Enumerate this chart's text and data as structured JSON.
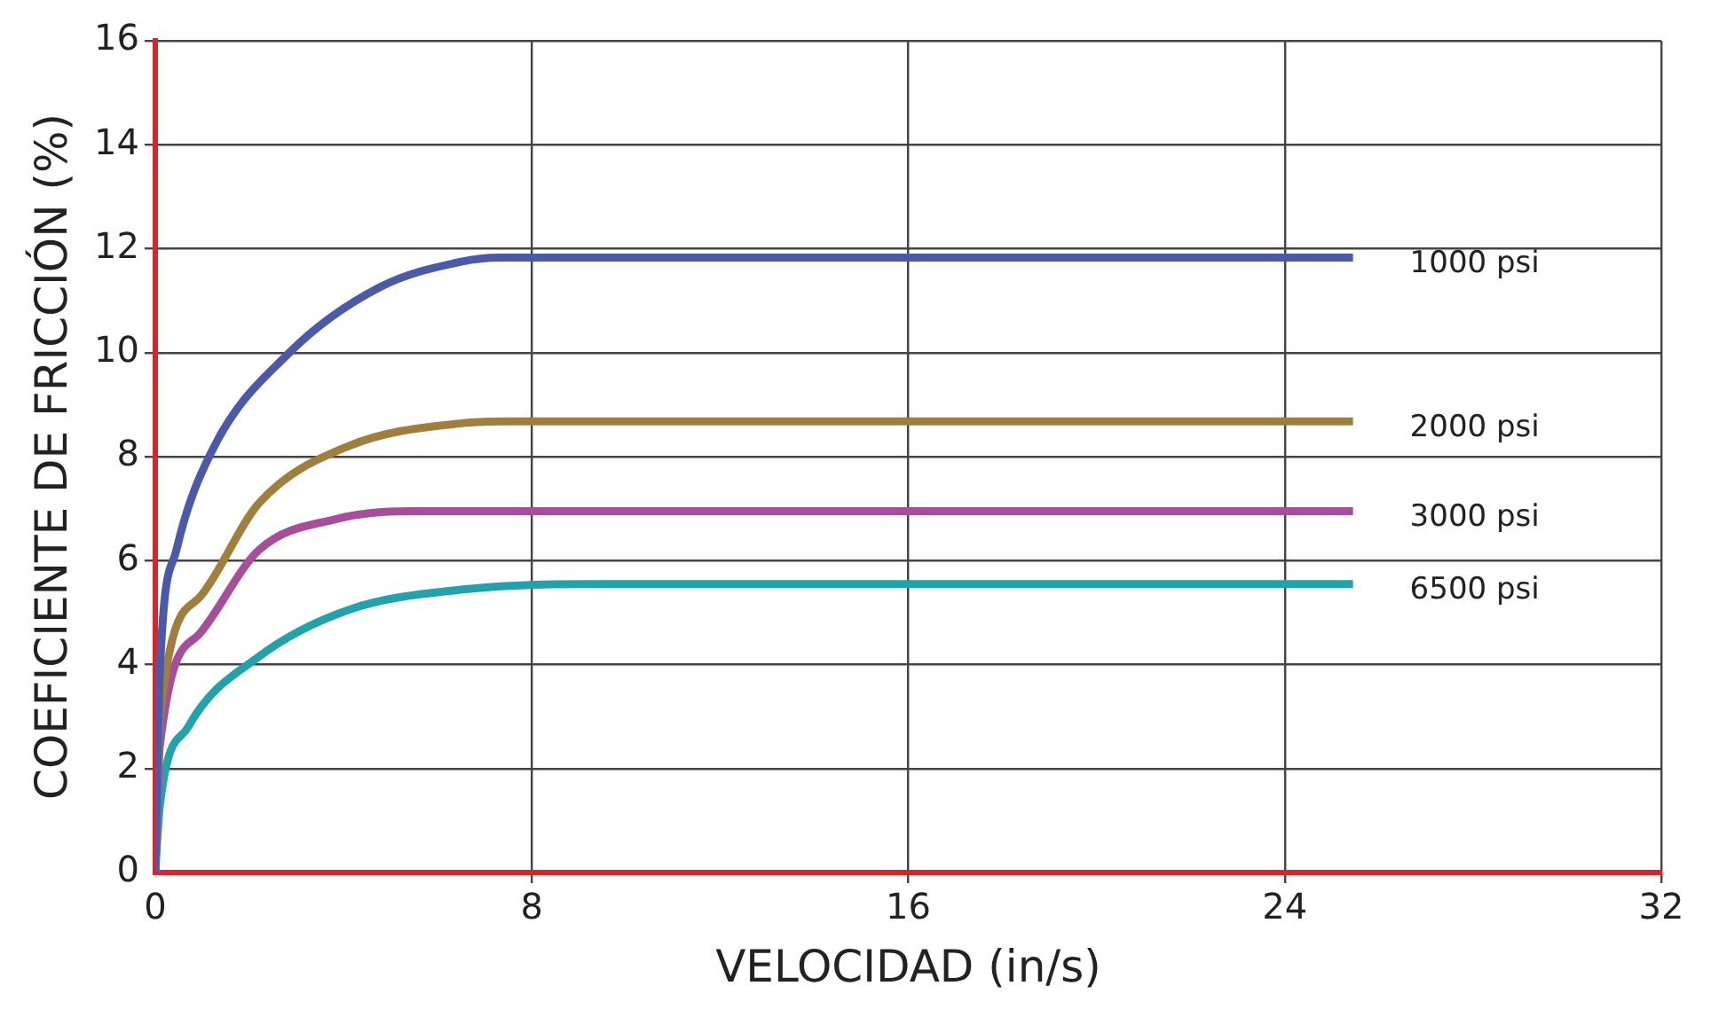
{
  "chart_data": {
    "type": "line",
    "xlabel": "VELOCIDAD (in/s)",
    "ylabel": "COEFICIENTE DE FRICCIÓN (%)",
    "xlim": [
      0,
      32
    ],
    "xticks": [
      0,
      8,
      16,
      24,
      32
    ],
    "ylim": [
      0,
      16
    ],
    "yticks": [
      0,
      2,
      4,
      6,
      8,
      10,
      12,
      14,
      16
    ],
    "grid": true,
    "marker": "none",
    "series": [
      {
        "name": "1000 psi",
        "color": "#4b5aa8",
        "x": [
          0,
          0.1,
          0.45,
          1.2,
          2.85,
          4.75,
          6.5,
          7.3,
          25.45
        ],
        "values": [
          0,
          3.9,
          6.2,
          8.1,
          10.0,
          11.25,
          11.75,
          11.83,
          11.83
        ]
      },
      {
        "name": "2000 psi",
        "color": "#a07f3c",
        "x": [
          0,
          0.1,
          0.95,
          2.2,
          4.1,
          6.6,
          7.5,
          25.45
        ],
        "values": [
          0,
          3.0,
          5.3,
          7.1,
          8.2,
          8.65,
          8.68,
          8.68
        ]
      },
      {
        "name": "3000 psi",
        "color": "#a64d9c",
        "x": [
          0,
          0.1,
          0.95,
          2.2,
          3.85,
          5.4,
          25.45
        ],
        "values": [
          0,
          2.45,
          4.6,
          6.2,
          6.8,
          6.95,
          6.95
        ]
      },
      {
        "name": "6500 psi",
        "color": "#22a3ac",
        "x": [
          0,
          0.1,
          0.7,
          2.2,
          4.1,
          6.6,
          9.2,
          25.45
        ],
        "values": [
          0,
          1.3,
          2.8,
          4.15,
          5.05,
          5.45,
          5.55,
          5.55
        ]
      }
    ]
  }
}
